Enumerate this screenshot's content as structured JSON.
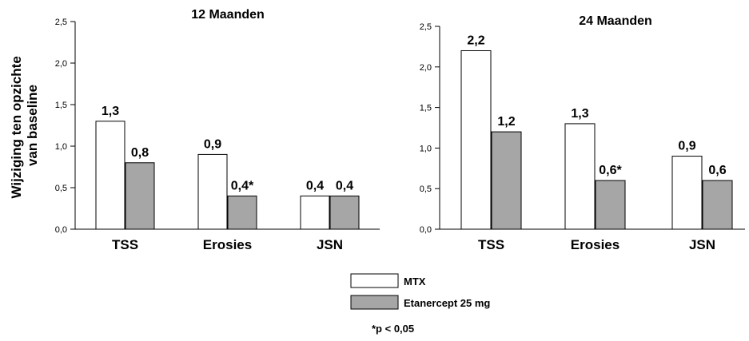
{
  "y_axis_label": [
    "Wijziging ten opzichte",
    "van baseline"
  ],
  "legend": {
    "items": [
      {
        "label": "MTX",
        "color": "#ffffff"
      },
      {
        "label": "Etanercept 25 mg",
        "color": "#a6a6a6"
      }
    ]
  },
  "footnote": "*p < 0,05",
  "chart_data": [
    {
      "type": "bar",
      "title": "12 Maanden",
      "categories": [
        "TSS",
        "Erosies",
        "JSN"
      ],
      "ylim": [
        0,
        2.5
      ],
      "yticks": [
        "0,0",
        "0,5",
        "1,0",
        "1,5",
        "2,0",
        "2,5"
      ],
      "series": [
        {
          "name": "MTX",
          "values": [
            1.3,
            0.9,
            0.4
          ],
          "labels": [
            "1,3",
            "0,9",
            "0,4"
          ]
        },
        {
          "name": "Etanercept 25 mg",
          "values": [
            0.8,
            0.4,
            0.4
          ],
          "labels": [
            "0,8",
            "0,4*",
            "0,4"
          ]
        }
      ]
    },
    {
      "type": "bar",
      "title": "24 Maanden",
      "categories": [
        "TSS",
        "Erosies",
        "JSN"
      ],
      "ylim": [
        0,
        2.5
      ],
      "yticks": [
        "0,0",
        "0,5",
        "1,0",
        "1,5",
        "2,0",
        "2,5"
      ],
      "series": [
        {
          "name": "MTX",
          "values": [
            2.2,
            1.3,
            0.9
          ],
          "labels": [
            "2,2",
            "1,3",
            "0,9"
          ]
        },
        {
          "name": "Etanercept 25 mg",
          "values": [
            1.2,
            0.6,
            0.6
          ],
          "labels": [
            "1,2",
            "0,6*",
            "0,6"
          ]
        }
      ]
    }
  ]
}
